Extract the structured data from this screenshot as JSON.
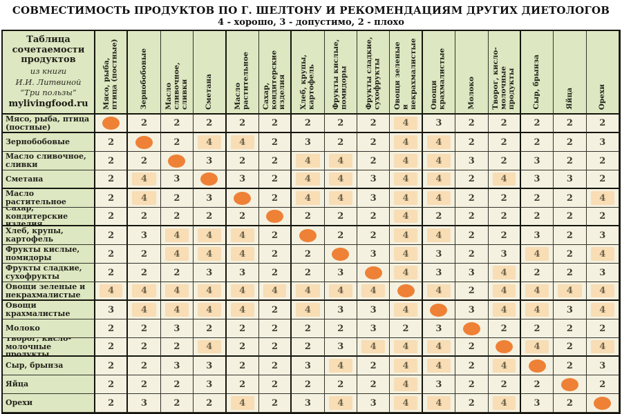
{
  "title": "СОВМЕСТИМОСТЬ ПРОДУКТОВ ПО Г. ШЕЛТОНУ И РЕКОМЕНДАЦИЯМ ДРУГИХ ДИЕТОЛОГОВ",
  "subtitle": "4 - хорошо, 3 - допустимо, 2 - плохо",
  "corner": {
    "heading": "Таблица сочетаемости продуктов",
    "source_line1": "из книги",
    "source_line2": "И.И. Литвиной",
    "source_line3": "“Три пользы”",
    "site": "mylivingfood.ru"
  },
  "colors": {
    "page_bg": "#ffffff",
    "header_bg": "#dde7c1",
    "cell_bg": "#f4f1e0",
    "hl_bg": "#f8ddb5",
    "dot": "#ee8136",
    "border": "#32322a",
    "border_thick": "#14140e",
    "num": "#3f3d30",
    "hl_num": "#6e6349",
    "title": "#111111"
  },
  "chart_data": {
    "type": "table",
    "title": "Совместимость продуктов по Г. Шелтону и рекомендациям других диетологов",
    "legend": {
      "4": "хорошо",
      "3": "допустимо",
      "2": "плохо"
    },
    "diagonal_marker": "orange-dot (same product)",
    "highlight_rule": "cells with value 4 have peach highlight",
    "categories": [
      "Мясо, рыба, птица (постные)",
      "Зернобобовые",
      "Масло сливочное, сливки",
      "Сметана",
      "Масло растительное",
      "Сахар, кондитерские изделия",
      "Хлеб, крупы, картофель",
      "Фрукты кислые, помидоры",
      "Фрукты сладкие, сухофрукты",
      "Овощи зеленые и некрахмалистые",
      "Овощи крахмалистые",
      "Молоко",
      "Творог, кисло-молочные продукты",
      "Сыр, брынза",
      "Яйца",
      "Орехи"
    ],
    "matrix": [
      [
        null,
        2,
        2,
        2,
        2,
        2,
        2,
        2,
        2,
        4,
        3,
        2,
        2,
        2,
        2,
        2
      ],
      [
        2,
        null,
        2,
        4,
        4,
        2,
        3,
        2,
        2,
        4,
        4,
        2,
        2,
        2,
        2,
        3
      ],
      [
        2,
        2,
        null,
        3,
        2,
        2,
        4,
        4,
        2,
        4,
        4,
        3,
        2,
        3,
        2,
        2
      ],
      [
        2,
        4,
        3,
        null,
        3,
        2,
        4,
        4,
        3,
        4,
        4,
        2,
        4,
        3,
        3,
        2
      ],
      [
        2,
        4,
        2,
        3,
        null,
        2,
        4,
        4,
        3,
        4,
        4,
        2,
        2,
        2,
        2,
        4
      ],
      [
        2,
        2,
        2,
        2,
        2,
        null,
        2,
        2,
        2,
        4,
        2,
        2,
        2,
        2,
        2,
        2
      ],
      [
        2,
        3,
        4,
        4,
        4,
        2,
        null,
        2,
        2,
        4,
        4,
        2,
        2,
        3,
        2,
        3
      ],
      [
        2,
        2,
        4,
        4,
        4,
        2,
        2,
        null,
        3,
        4,
        3,
        2,
        3,
        4,
        2,
        4
      ],
      [
        2,
        2,
        2,
        3,
        3,
        2,
        2,
        3,
        null,
        4,
        3,
        3,
        4,
        2,
        2,
        3
      ],
      [
        4,
        4,
        4,
        4,
        4,
        4,
        4,
        4,
        4,
        null,
        4,
        2,
        4,
        4,
        4,
        4
      ],
      [
        3,
        4,
        4,
        4,
        4,
        2,
        4,
        3,
        3,
        4,
        null,
        3,
        4,
        4,
        3,
        4
      ],
      [
        2,
        2,
        3,
        2,
        2,
        2,
        2,
        2,
        3,
        2,
        3,
        null,
        2,
        2,
        2,
        2
      ],
      [
        2,
        2,
        2,
        4,
        2,
        2,
        2,
        3,
        4,
        4,
        4,
        2,
        null,
        4,
        2,
        4
      ],
      [
        2,
        2,
        3,
        3,
        2,
        2,
        3,
        4,
        2,
        4,
        4,
        2,
        4,
        null,
        2,
        3
      ],
      [
        2,
        2,
        2,
        3,
        2,
        2,
        2,
        2,
        2,
        4,
        3,
        2,
        2,
        2,
        null,
        2
      ],
      [
        2,
        3,
        2,
        2,
        4,
        2,
        3,
        4,
        3,
        4,
        4,
        2,
        4,
        3,
        2,
        null
      ]
    ]
  }
}
